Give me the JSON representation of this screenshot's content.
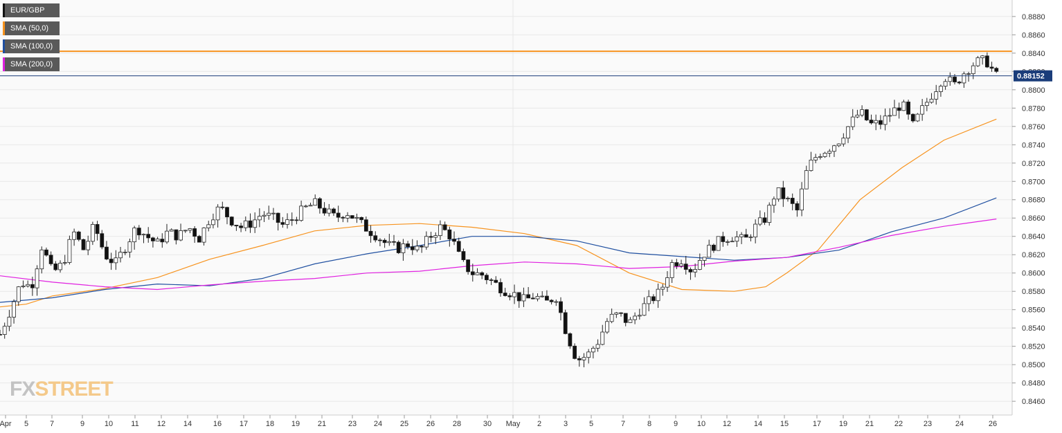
{
  "chart_data": {
    "type": "candlestick",
    "symbol": "EUR/GBP",
    "last_price_label": "0.88152",
    "last_price": 0.88152,
    "resistance_level": 0.8842,
    "ylim": [
      0.8445,
      0.8898
    ],
    "y_ticks": [
      "0.8460",
      "0.8480",
      "0.8500",
      "0.8520",
      "0.8540",
      "0.8560",
      "0.8580",
      "0.8600",
      "0.8620",
      "0.8640",
      "0.8660",
      "0.8680",
      "0.8700",
      "0.8720",
      "0.8740",
      "0.8760",
      "0.8780",
      "0.8800",
      "0.8820",
      "0.8840",
      "0.8860",
      "0.8880"
    ],
    "x_tick_labels": [
      "Apr",
      "5",
      "7",
      "9",
      "10",
      "11",
      "12",
      "14",
      "16",
      "17",
      "18",
      "19",
      "21",
      "23",
      "24",
      "25",
      "26",
      "28",
      "30",
      "May",
      "2",
      "3",
      "5",
      "7",
      "8",
      "9",
      "10",
      "12",
      "14",
      "15",
      "17",
      "19",
      "21",
      "22",
      "23",
      "24",
      "26"
    ],
    "legend": [
      {
        "label": "EUR/GBP",
        "color": "#111111"
      },
      {
        "label": "SMA (50,0)",
        "color": "#f7931e"
      },
      {
        "label": "SMA (100,0)",
        "color": "#1f4fa0"
      },
      {
        "label": "SMA (200,0)",
        "color": "#e020e0"
      }
    ],
    "series": [
      {
        "name": "SMA (50,0)",
        "color": "#f7931e",
        "points": [
          [
            0,
            0.8563
          ],
          [
            0.025,
            0.8566
          ],
          [
            0.05,
            0.8575
          ],
          [
            0.1,
            0.8583
          ],
          [
            0.15,
            0.8595
          ],
          [
            0.2,
            0.8615
          ],
          [
            0.25,
            0.863
          ],
          [
            0.3,
            0.8646
          ],
          [
            0.35,
            0.8652
          ],
          [
            0.4,
            0.8654
          ],
          [
            0.45,
            0.865
          ],
          [
            0.5,
            0.8643
          ],
          [
            0.55,
            0.863
          ],
          [
            0.6,
            0.86
          ],
          [
            0.65,
            0.8582
          ],
          [
            0.7,
            0.858
          ],
          [
            0.73,
            0.8585
          ],
          [
            0.75,
            0.86
          ],
          [
            0.78,
            0.8625
          ],
          [
            0.82,
            0.868
          ],
          [
            0.86,
            0.8715
          ],
          [
            0.9,
            0.8745
          ],
          [
            0.95,
            0.8768
          ]
        ]
      },
      {
        "name": "SMA (100,0)",
        "color": "#1f4fa0",
        "points": [
          [
            0,
            0.8568
          ],
          [
            0.05,
            0.8573
          ],
          [
            0.1,
            0.8582
          ],
          [
            0.15,
            0.8588
          ],
          [
            0.2,
            0.8586
          ],
          [
            0.25,
            0.8594
          ],
          [
            0.3,
            0.861
          ],
          [
            0.35,
            0.8621
          ],
          [
            0.4,
            0.863
          ],
          [
            0.45,
            0.864
          ],
          [
            0.5,
            0.864
          ],
          [
            0.55,
            0.8635
          ],
          [
            0.6,
            0.8622
          ],
          [
            0.65,
            0.8618
          ],
          [
            0.7,
            0.8614
          ],
          [
            0.75,
            0.8617
          ],
          [
            0.8,
            0.8625
          ],
          [
            0.85,
            0.8645
          ],
          [
            0.9,
            0.866
          ],
          [
            0.95,
            0.8682
          ]
        ]
      },
      {
        "name": "SMA (200,0)",
        "color": "#e020e0",
        "points": [
          [
            0,
            0.8597
          ],
          [
            0.05,
            0.859
          ],
          [
            0.1,
            0.8585
          ],
          [
            0.15,
            0.8582
          ],
          [
            0.2,
            0.8587
          ],
          [
            0.25,
            0.8591
          ],
          [
            0.3,
            0.8594
          ],
          [
            0.35,
            0.86
          ],
          [
            0.4,
            0.8602
          ],
          [
            0.45,
            0.8608
          ],
          [
            0.5,
            0.8612
          ],
          [
            0.55,
            0.861
          ],
          [
            0.6,
            0.8605
          ],
          [
            0.65,
            0.8607
          ],
          [
            0.7,
            0.8613
          ],
          [
            0.75,
            0.8617
          ],
          [
            0.8,
            0.8628
          ],
          [
            0.85,
            0.8641
          ],
          [
            0.9,
            0.8651
          ],
          [
            0.95,
            0.8659
          ]
        ]
      }
    ],
    "price_path": [
      [
        0,
        0.8533
      ],
      [
        0.01,
        0.856
      ],
      [
        0.02,
        0.859
      ],
      [
        0.03,
        0.8585
      ],
      [
        0.04,
        0.863
      ],
      [
        0.05,
        0.86
      ],
      [
        0.06,
        0.861
      ],
      [
        0.07,
        0.8645
      ],
      [
        0.08,
        0.8625
      ],
      [
        0.09,
        0.8652
      ],
      [
        0.1,
        0.862
      ],
      [
        0.11,
        0.861
      ],
      [
        0.12,
        0.863
      ],
      [
        0.13,
        0.865
      ],
      [
        0.14,
        0.864
      ],
      [
        0.15,
        0.8632
      ],
      [
        0.16,
        0.8645
      ],
      [
        0.17,
        0.864
      ],
      [
        0.18,
        0.865
      ],
      [
        0.19,
        0.8638
      ],
      [
        0.2,
        0.866
      ],
      [
        0.21,
        0.8672
      ],
      [
        0.22,
        0.8658
      ],
      [
        0.23,
        0.865
      ],
      [
        0.24,
        0.8655
      ],
      [
        0.25,
        0.8665
      ],
      [
        0.26,
        0.866
      ],
      [
        0.27,
        0.8652
      ],
      [
        0.28,
        0.866
      ],
      [
        0.29,
        0.867
      ],
      [
        0.3,
        0.8676
      ],
      [
        0.31,
        0.8668
      ],
      [
        0.32,
        0.866
      ],
      [
        0.33,
        0.8667
      ],
      [
        0.34,
        0.8658
      ],
      [
        0.35,
        0.8648
      ],
      [
        0.36,
        0.864
      ],
      [
        0.37,
        0.863
      ],
      [
        0.38,
        0.8627
      ],
      [
        0.39,
        0.8632
      ],
      [
        0.4,
        0.8624
      ],
      [
        0.41,
        0.864
      ],
      [
        0.42,
        0.865
      ],
      [
        0.43,
        0.864
      ],
      [
        0.44,
        0.8612
      ],
      [
        0.45,
        0.86
      ],
      [
        0.46,
        0.8598
      ],
      [
        0.47,
        0.859
      ],
      [
        0.48,
        0.8582
      ],
      [
        0.49,
        0.8577
      ],
      [
        0.5,
        0.857
      ],
      [
        0.51,
        0.8575
      ],
      [
        0.52,
        0.8567
      ],
      [
        0.53,
        0.8575
      ],
      [
        0.54,
        0.8535
      ],
      [
        0.55,
        0.8505
      ],
      [
        0.56,
        0.851
      ],
      [
        0.57,
        0.8525
      ],
      [
        0.58,
        0.855
      ],
      [
        0.59,
        0.8555
      ],
      [
        0.6,
        0.8545
      ],
      [
        0.61,
        0.856
      ],
      [
        0.62,
        0.857
      ],
      [
        0.63,
        0.858
      ],
      [
        0.64,
        0.861
      ],
      [
        0.65,
        0.8615
      ],
      [
        0.66,
        0.8602
      ],
      [
        0.67,
        0.862
      ],
      [
        0.68,
        0.863
      ],
      [
        0.69,
        0.8638
      ],
      [
        0.7,
        0.864
      ],
      [
        0.71,
        0.8635
      ],
      [
        0.72,
        0.865
      ],
      [
        0.73,
        0.866
      ],
      [
        0.74,
        0.869
      ],
      [
        0.75,
        0.868
      ],
      [
        0.76,
        0.8668
      ],
      [
        0.77,
        0.8715
      ],
      [
        0.78,
        0.873
      ],
      [
        0.79,
        0.8736
      ],
      [
        0.8,
        0.8745
      ],
      [
        0.81,
        0.8762
      ],
      [
        0.82,
        0.8776
      ],
      [
        0.83,
        0.8762
      ],
      [
        0.84,
        0.8764
      ],
      [
        0.85,
        0.8775
      ],
      [
        0.86,
        0.8785
      ],
      [
        0.87,
        0.876
      ],
      [
        0.88,
        0.878
      ],
      [
        0.89,
        0.8798
      ],
      [
        0.9,
        0.8815
      ],
      [
        0.91,
        0.8805
      ],
      [
        0.92,
        0.882
      ],
      [
        0.93,
        0.883
      ],
      [
        0.94,
        0.8832
      ],
      [
        0.95,
        0.8815
      ]
    ],
    "candle_count": 216
  },
  "branding": {
    "fx": "FX",
    "street": "STREET"
  }
}
